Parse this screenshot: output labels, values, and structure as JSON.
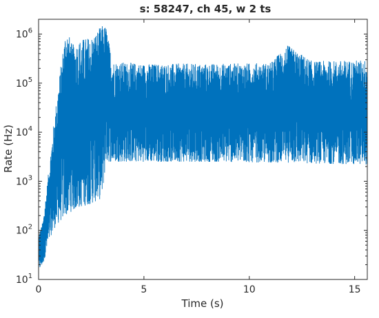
{
  "chart_data": {
    "type": "line",
    "title": "s: 58247, ch 45, w 2 ts",
    "xlabel": "Time (s)",
    "ylabel": "Rate (Hz)",
    "xlim": [
      0,
      15.6
    ],
    "ylim": [
      10,
      2000000
    ],
    "yscale": "log",
    "grid": false,
    "legend": "none",
    "x_ticks": [
      0,
      5,
      10,
      15
    ],
    "x_tick_labels": [
      "0",
      "5",
      "10",
      "15"
    ],
    "y_ticks": [
      10,
      100,
      1000,
      10000,
      100000,
      1000000
    ],
    "y_tick_labels": [
      {
        "base": "10",
        "exp": "1"
      },
      {
        "base": "10",
        "exp": "2"
      },
      {
        "base": "10",
        "exp": "3"
      },
      {
        "base": "10",
        "exp": "4"
      },
      {
        "base": "10",
        "exp": "5"
      },
      {
        "base": "10",
        "exp": "6"
      }
    ],
    "series": [
      {
        "color": "#0072BD",
        "envelope": [
          {
            "t": 0.0,
            "low": 15,
            "high": 80
          },
          {
            "t": 0.2,
            "low": 20,
            "high": 150
          },
          {
            "t": 0.4,
            "low": 40,
            "high": 800
          },
          {
            "t": 0.6,
            "low": 80,
            "high": 5000
          },
          {
            "t": 0.8,
            "low": 120,
            "high": 30000
          },
          {
            "t": 1.0,
            "low": 150,
            "high": 150000
          },
          {
            "t": 1.3,
            "low": 200,
            "high": 1500000
          },
          {
            "t": 1.6,
            "low": 250,
            "high": 600000
          },
          {
            "t": 2.0,
            "low": 300,
            "high": 800000
          },
          {
            "t": 2.5,
            "low": 350,
            "high": 900000
          },
          {
            "t": 3.0,
            "low": 450,
            "high": 1500000
          },
          {
            "t": 3.2,
            "low": 2500,
            "high": 1500000
          },
          {
            "t": 3.5,
            "low": 2500,
            "high": 280000
          },
          {
            "t": 5.0,
            "low": 2500,
            "high": 250000
          },
          {
            "t": 8.0,
            "low": 2500,
            "high": 250000
          },
          {
            "t": 11.0,
            "low": 2400,
            "high": 260000
          },
          {
            "t": 11.8,
            "low": 2400,
            "high": 600000
          },
          {
            "t": 13.0,
            "low": 2300,
            "high": 280000
          },
          {
            "t": 15.6,
            "low": 2200,
            "high": 300000
          }
        ]
      }
    ]
  }
}
